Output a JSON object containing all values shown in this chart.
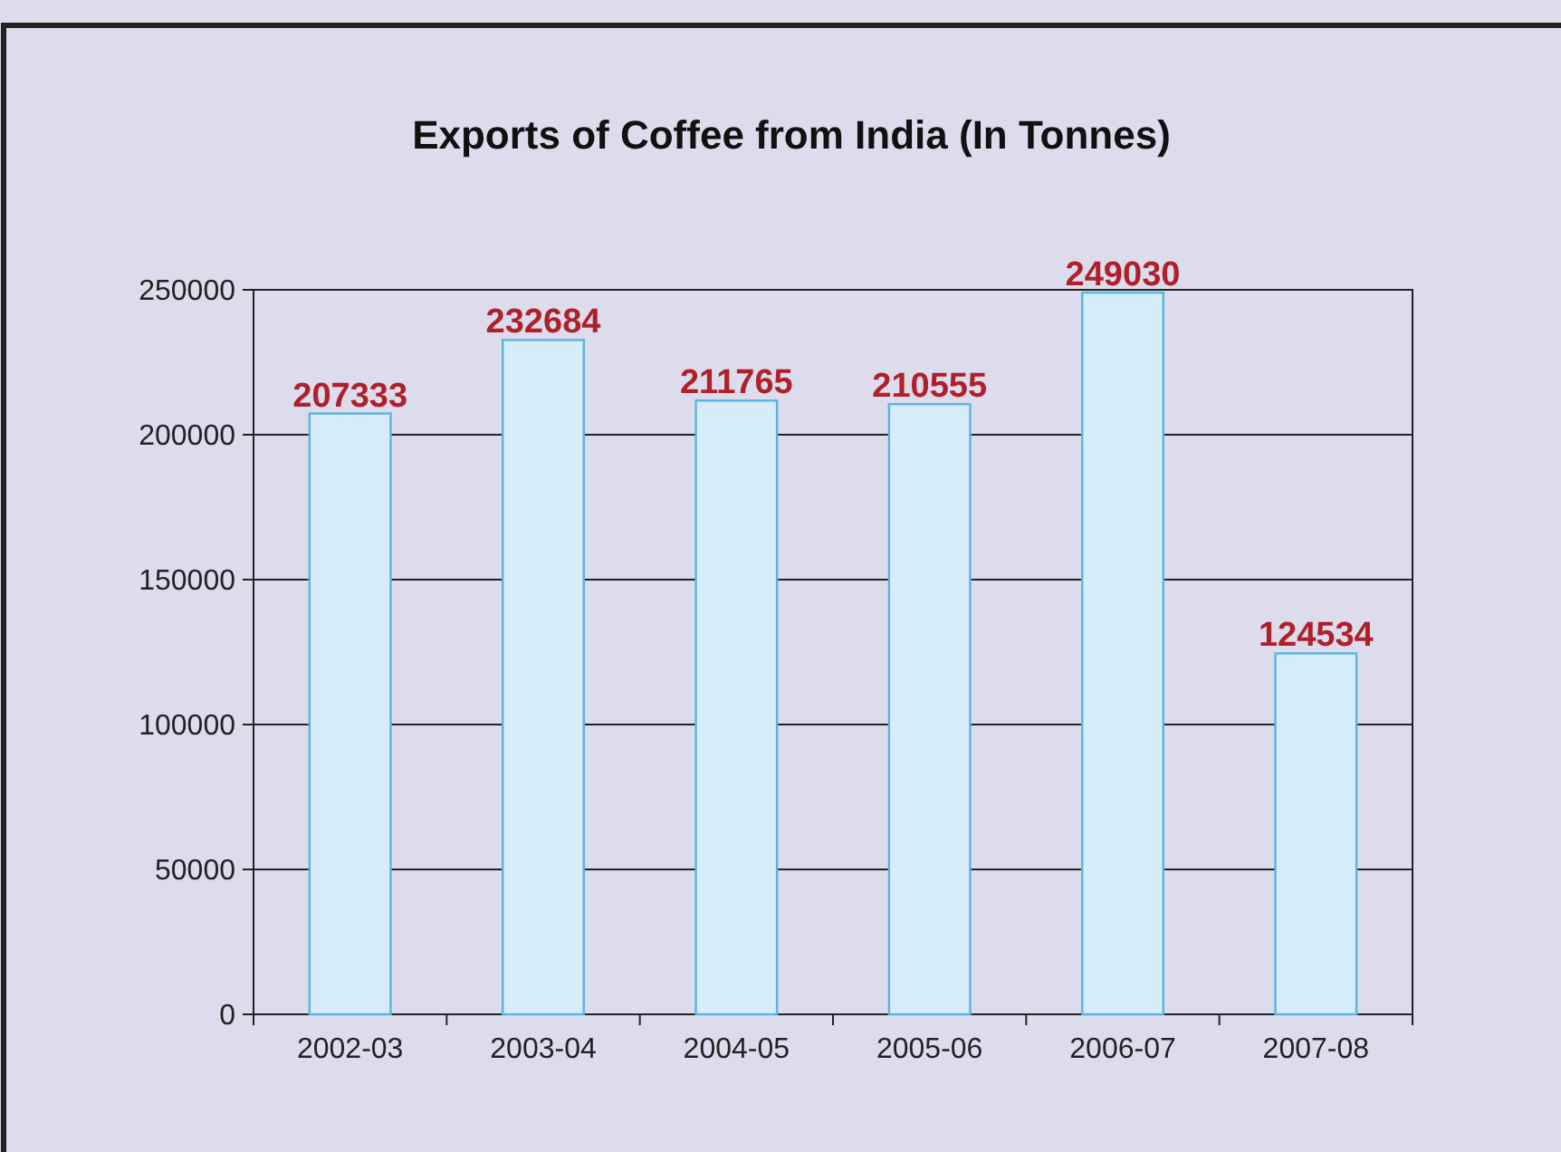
{
  "chart_data": {
    "type": "bar",
    "title": "Exports of Coffee from India  (In Tonnes)",
    "categories": [
      "2002-03",
      "2003-04",
      "2004-05",
      "2005-06",
      "2006-07",
      "2007-08"
    ],
    "values": [
      207333,
      232684,
      211765,
      210555,
      249030,
      124534
    ],
    "color": "#d6ecf8",
    "ylim": [
      0,
      250000
    ],
    "yticks": [
      0,
      50000,
      100000,
      150000,
      200000,
      250000
    ],
    "grid": "y",
    "data_labels": true
  }
}
